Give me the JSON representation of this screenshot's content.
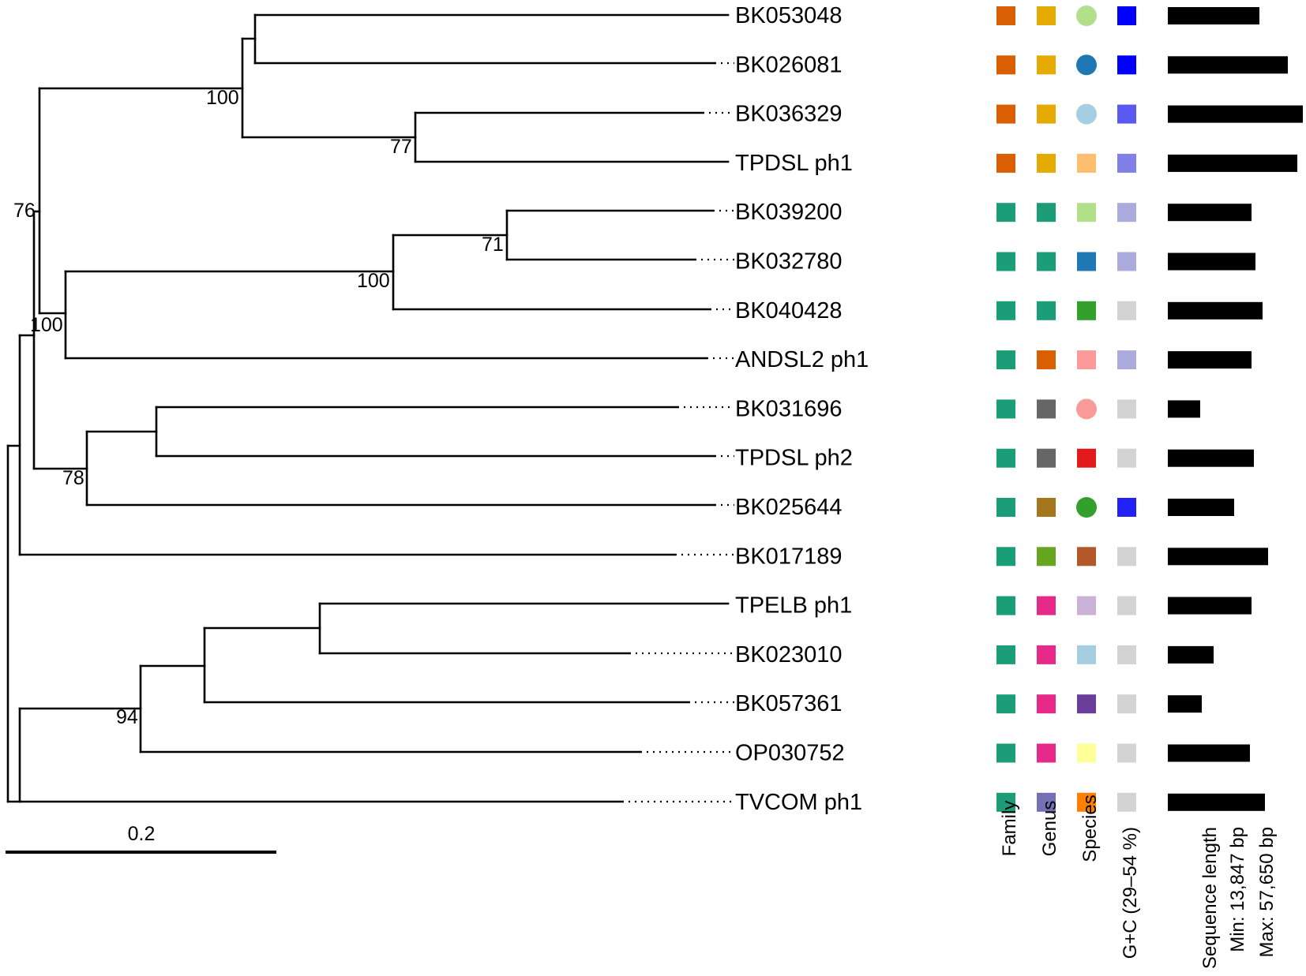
{
  "scale_bar": {
    "label": "0.2"
  },
  "leaves": [
    {
      "label": "BK053048",
      "family": "#D95F02",
      "genus": "#E6AB02",
      "species": "#B2DF8A",
      "species_shape": "circle",
      "gc": "#0000FF",
      "length_rel": 0.68
    },
    {
      "label": "BK026081",
      "family": "#D95F02",
      "genus": "#E6AB02",
      "species": "#1F78B4",
      "species_shape": "circle",
      "gc": "#0000FF",
      "length_rel": 0.89
    },
    {
      "label": "BK036329",
      "family": "#D95F02",
      "genus": "#E6AB02",
      "species": "#A6CEE3",
      "species_shape": "circle",
      "gc": "#5A5AF0",
      "length_rel": 1.0
    },
    {
      "label": "TPDSL ph1",
      "family": "#D95F02",
      "genus": "#E6AB02",
      "species": "#FDBF6F",
      "species_shape": "square",
      "gc": "#8080E8",
      "length_rel": 0.96
    },
    {
      "label": "BK039200",
      "family": "#1B9E77",
      "genus": "#1B9E77",
      "species": "#B2DF8A",
      "species_shape": "square",
      "gc": "#AAAADD",
      "length_rel": 0.62
    },
    {
      "label": "BK032780",
      "family": "#1B9E77",
      "genus": "#1B9E77",
      "species": "#1F78B4",
      "species_shape": "square",
      "gc": "#AAAADD",
      "length_rel": 0.65
    },
    {
      "label": "BK040428",
      "family": "#1B9E77",
      "genus": "#1B9E77",
      "species": "#33A02C",
      "species_shape": "square",
      "gc": "#D3D3D3",
      "length_rel": 0.7
    },
    {
      "label": "ANDSL2 ph1",
      "family": "#1B9E77",
      "genus": "#D95F02",
      "species": "#FB9A99",
      "species_shape": "square",
      "gc": "#AAAADD",
      "length_rel": 0.62
    },
    {
      "label": "BK031696",
      "family": "#1B9E77",
      "genus": "#666666",
      "species": "#FB9A99",
      "species_shape": "circle",
      "gc": "#D3D3D3",
      "length_rel": 0.24
    },
    {
      "label": "TPDSL ph2",
      "family": "#1B9E77",
      "genus": "#666666",
      "species": "#E31A1C",
      "species_shape": "square",
      "gc": "#D3D3D3",
      "length_rel": 0.64
    },
    {
      "label": "BK025644",
      "family": "#1B9E77",
      "genus": "#A6761D",
      "species": "#33A02C",
      "species_shape": "circle",
      "gc": "#2222F8",
      "length_rel": 0.49
    },
    {
      "label": "BK017189",
      "family": "#1B9E77",
      "genus": "#66A61E",
      "species": "#B15928",
      "species_shape": "square",
      "gc": "#D3D3D3",
      "length_rel": 0.74
    },
    {
      "label": "TPELB ph1",
      "family": "#1B9E77",
      "genus": "#E7298A",
      "species": "#CAB2D6",
      "species_shape": "square",
      "gc": "#D3D3D3",
      "length_rel": 0.62
    },
    {
      "label": "BK023010",
      "family": "#1B9E77",
      "genus": "#E7298A",
      "species": "#A6CEE3",
      "species_shape": "square",
      "gc": "#D3D3D3",
      "length_rel": 0.34
    },
    {
      "label": "BK057361",
      "family": "#1B9E77",
      "genus": "#E7298A",
      "species": "#6A3D9A",
      "species_shape": "square",
      "gc": "#D3D3D3",
      "length_rel": 0.25
    },
    {
      "label": "OP030752",
      "family": "#1B9E77",
      "genus": "#E7298A",
      "species": "#FFFF99",
      "species_shape": "square",
      "gc": "#D3D3D3",
      "length_rel": 0.61
    },
    {
      "label": "TVCOM ph1",
      "family": "#1B9E77",
      "genus": "#7570B3",
      "species": "#FF7F00",
      "species_shape": "square",
      "gc": "#D3D3D3",
      "length_rel": 0.72
    }
  ],
  "bootstrap": {
    "n100a": "100",
    "n77": "77",
    "n76": "76",
    "n71": "71",
    "n100b": "100",
    "n100c": "100",
    "n78": "78",
    "n94": "94"
  },
  "columns": {
    "family": "Family",
    "genus": "Genus",
    "species": "Species",
    "gc": "G+C (29–54 %)",
    "length": "Sequence length",
    "min": "Min: 13,847 bp",
    "max": "Max: 57,650 bp"
  }
}
